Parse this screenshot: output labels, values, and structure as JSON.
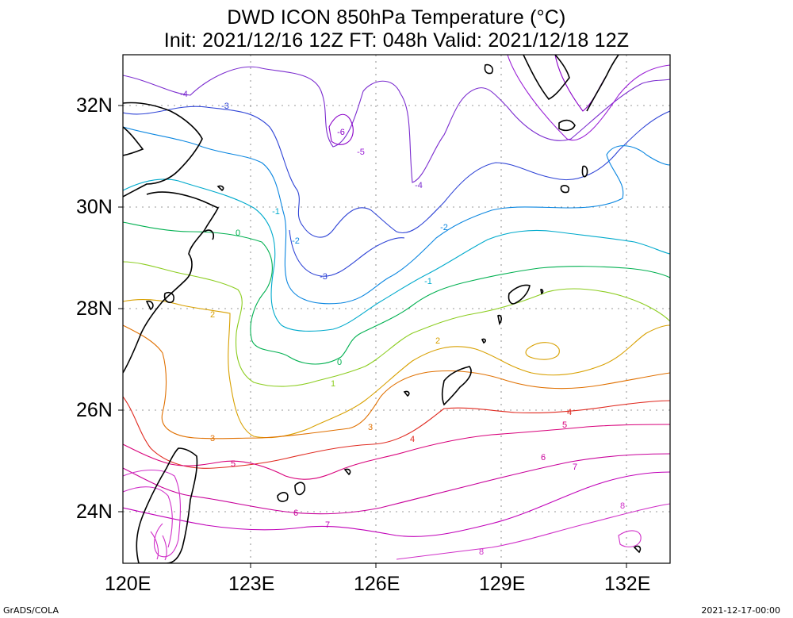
{
  "title": {
    "line1": "DWD ICON 850hPa Temperature (°C)",
    "line2": "Init: 2021/12/16 12Z  FT: 048h  Valid: 2021/12/18 12Z"
  },
  "axes": {
    "lon_labels": [
      "120E",
      "123E",
      "126E",
      "129E",
      "132E"
    ],
    "lat_labels": [
      "32N",
      "30N",
      "28N",
      "26N",
      "24N"
    ]
  },
  "footer": {
    "left": "GrADS/COLA",
    "right": "2021-12-17-00:00"
  },
  "contour_labels": [
    "-6",
    "-5",
    "-4",
    "-3",
    "-2",
    "-1",
    "0",
    "1",
    "2",
    "3",
    "4",
    "5",
    "6",
    "7",
    "8"
  ],
  "colors": {
    "m6": "#8a00c8",
    "m5": "#9a1fd6",
    "m4": "#7b2ccf",
    "m3": "#2f44d6",
    "m2": "#0a86e0",
    "m1": "#00aacc",
    "z0": "#00b050",
    "p1": "#8ccd20",
    "p2": "#d8a000",
    "p3": "#e07000",
    "p4": "#e02a20",
    "p5": "#d8007a",
    "p6": "#c8009a",
    "p7": "#c000b8",
    "p8": "#d030c8",
    "coast": "#000000",
    "grid": "#999999"
  }
}
